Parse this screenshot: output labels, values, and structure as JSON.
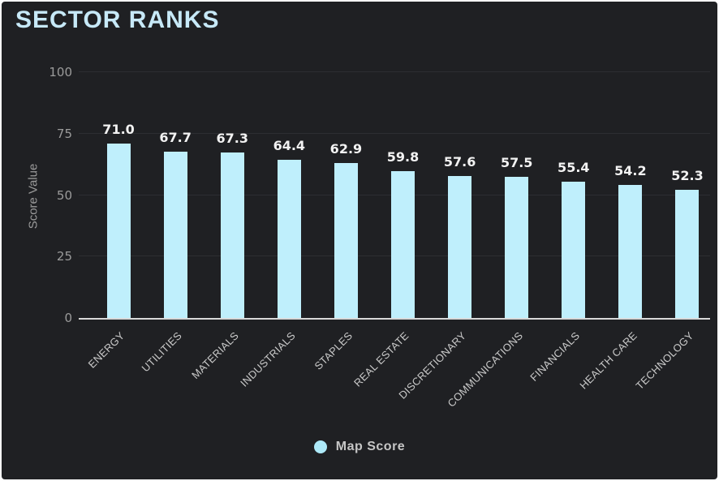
{
  "title": "SECTOR RANKS",
  "colors": {
    "background": "#1f2023",
    "title": "#c7e9f8",
    "bar": "#bfeffc",
    "legend_dot": "#ade9f8",
    "axis_line": "#d8d8d8",
    "gridline": "#2d2e32",
    "value_label": "#f2f2f2",
    "tick_label": "#9b9b9b",
    "category_label": "#c9c9c9"
  },
  "chart_data": {
    "type": "bar",
    "title": "SECTOR RANKS",
    "categories": [
      "ENERGY",
      "UTILITIES",
      "MATERIALS",
      "INDUSTRIALS",
      "STAPLES",
      "REAL ESTATE",
      "DISCRETIONARY",
      "COMMUNICATIONS",
      "FINANCIALS",
      "HEALTH CARE",
      "TECHNOLOGY"
    ],
    "series": [
      {
        "name": "Map Score",
        "values": [
          71.0,
          67.7,
          67.3,
          64.4,
          62.9,
          59.8,
          57.6,
          57.5,
          55.4,
          54.2,
          52.3
        ]
      }
    ],
    "value_labels": [
      "71.0",
      "67.7",
      "67.3",
      "64.4",
      "62.9",
      "59.8",
      "57.6",
      "57.5",
      "55.4",
      "54.2",
      "52.3"
    ],
    "xlabel": "",
    "ylabel": "Score Value",
    "ylim": [
      0,
      100
    ],
    "yticks": [
      0,
      25,
      50,
      75,
      100
    ],
    "grid": true,
    "legend_position": "bottom"
  },
  "legend": {
    "label": "Map Score"
  }
}
